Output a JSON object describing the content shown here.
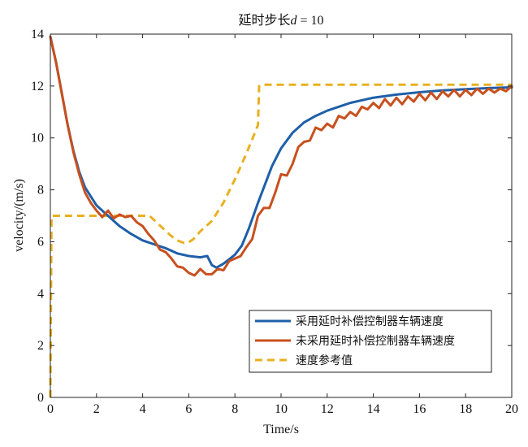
{
  "chart_data": {
    "type": "line",
    "title": "延时步长d = 10",
    "title_parts": {
      "prefix": "延时步长",
      "variable": "d",
      "suffix": " = 10"
    },
    "xlabel": "Time/s",
    "ylabel": "velocity/(m/s)",
    "xlim": [
      0,
      20
    ],
    "ylim": [
      0,
      14
    ],
    "xticks": [
      0,
      2,
      4,
      6,
      8,
      10,
      12,
      14,
      16,
      18,
      20
    ],
    "yticks": [
      0,
      2,
      4,
      6,
      8,
      10,
      12,
      14
    ],
    "grid": false,
    "legend_position": "bottom-right",
    "series": [
      {
        "name": "采用延时补偿控制器车辆速度",
        "color": "#1f5fa8",
        "style": "solid",
        "x": [
          0,
          0.25,
          0.5,
          0.75,
          1.0,
          1.25,
          1.5,
          1.75,
          2.0,
          2.5,
          3.0,
          3.5,
          4.0,
          4.5,
          5.0,
          5.5,
          6.0,
          6.5,
          6.8,
          7.0,
          7.2,
          7.5,
          8.0,
          8.3,
          8.6,
          9.0,
          9.3,
          9.6,
          10.0,
          10.5,
          11.0,
          11.5,
          12.0,
          13.0,
          14.0,
          15.0,
          16.0,
          17.0,
          18.0,
          19.0,
          20.0
        ],
        "y": [
          13.9,
          12.9,
          11.7,
          10.5,
          9.5,
          8.7,
          8.1,
          7.75,
          7.4,
          7.0,
          6.6,
          6.3,
          6.05,
          5.9,
          5.75,
          5.55,
          5.45,
          5.4,
          5.45,
          5.1,
          5.0,
          5.15,
          5.5,
          5.85,
          6.5,
          7.5,
          8.2,
          8.9,
          9.6,
          10.2,
          10.6,
          10.85,
          11.05,
          11.35,
          11.55,
          11.67,
          11.76,
          11.83,
          11.88,
          11.92,
          11.95
        ]
      },
      {
        "name": "未采用延时补偿控制器车辆速度",
        "color": "#c8501e",
        "style": "solid",
        "x": [
          0,
          0.25,
          0.5,
          0.75,
          1.0,
          1.25,
          1.5,
          1.75,
          2.0,
          2.25,
          2.5,
          2.75,
          3.0,
          3.25,
          3.5,
          3.75,
          4.0,
          4.25,
          4.5,
          4.75,
          5.0,
          5.25,
          5.5,
          5.75,
          6.0,
          6.25,
          6.5,
          6.75,
          7.0,
          7.25,
          7.5,
          7.75,
          8.0,
          8.25,
          8.5,
          8.75,
          9.0,
          9.25,
          9.5,
          9.75,
          10.0,
          10.25,
          10.5,
          10.75,
          11.0,
          11.25,
          11.5,
          11.75,
          12.0,
          12.25,
          12.5,
          12.75,
          13.0,
          13.25,
          13.5,
          13.75,
          14.0,
          14.25,
          14.5,
          14.75,
          15.0,
          15.25,
          15.5,
          15.75,
          16.0,
          16.25,
          16.5,
          16.75,
          17.0,
          17.25,
          17.5,
          17.75,
          18.0,
          18.25,
          18.5,
          18.75,
          19.0,
          19.25,
          19.5,
          19.75,
          20.0
        ],
        "y": [
          13.9,
          12.9,
          11.7,
          10.5,
          9.45,
          8.6,
          7.9,
          7.5,
          7.2,
          6.95,
          7.2,
          6.9,
          7.05,
          6.95,
          7.0,
          6.75,
          6.6,
          6.3,
          6.05,
          5.7,
          5.6,
          5.35,
          5.05,
          5.0,
          4.8,
          4.7,
          4.95,
          4.75,
          4.75,
          4.95,
          4.9,
          5.25,
          5.35,
          5.45,
          5.8,
          6.1,
          7.0,
          7.3,
          7.3,
          7.9,
          8.6,
          8.55,
          9.0,
          9.65,
          9.85,
          9.9,
          10.4,
          10.3,
          10.55,
          10.4,
          10.85,
          10.75,
          11.0,
          10.85,
          11.2,
          11.1,
          11.35,
          11.15,
          11.5,
          11.25,
          11.55,
          11.3,
          11.6,
          11.4,
          11.7,
          11.45,
          11.75,
          11.5,
          11.8,
          11.6,
          11.85,
          11.6,
          11.85,
          11.65,
          11.9,
          11.7,
          11.9,
          11.75,
          11.9,
          11.8,
          12.0
        ]
      },
      {
        "name": "速度参考值",
        "color": "#e8b020",
        "style": "dashed",
        "x": [
          0,
          0.05,
          0.1,
          4.3,
          4.6,
          4.9,
          5.2,
          5.5,
          5.8,
          6.0,
          6.2,
          6.5,
          7.0,
          7.5,
          8.0,
          8.5,
          9.0,
          9.05,
          9.1,
          20.0
        ],
        "y": [
          0,
          7.0,
          7.0,
          7.0,
          6.75,
          6.5,
          6.25,
          6.05,
          5.95,
          5.98,
          6.1,
          6.4,
          6.8,
          7.5,
          8.4,
          9.4,
          10.5,
          12.0,
          12.05,
          12.05
        ]
      }
    ]
  }
}
